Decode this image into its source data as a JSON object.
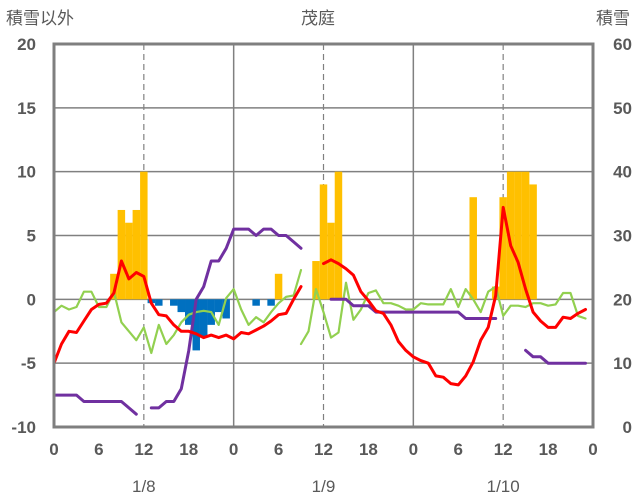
{
  "chart_data": {
    "type": "bar+line",
    "title": "茂庭",
    "left_axis_label": "積雪以外",
    "right_axis_label": "積雪",
    "left_ylim": [
      -10,
      20
    ],
    "left_ticks": [
      "-10",
      "-5",
      "0",
      "5",
      "10",
      "15",
      "20"
    ],
    "right_ylim": [
      0,
      60
    ],
    "right_ticks": [
      "0",
      "10",
      "20",
      "30",
      "40",
      "50",
      "60"
    ],
    "x_range_hours": [
      0,
      72
    ],
    "x_ticks": [
      "0",
      "6",
      "12",
      "18",
      "0",
      "6",
      "12",
      "18",
      "0",
      "6",
      "12",
      "18",
      "0"
    ],
    "x_tick_hours": [
      0,
      6,
      12,
      18,
      24,
      30,
      36,
      42,
      48,
      54,
      60,
      66,
      72
    ],
    "date_labels": [
      {
        "text": "1/8",
        "hour": 12
      },
      {
        "text": "1/9",
        "hour": 36
      },
      {
        "text": "1/10",
        "hour": 60
      }
    ],
    "grid": {
      "solid_hours": [
        24,
        48
      ],
      "dashed_hours": [
        12,
        36,
        60
      ],
      "horizontal_levels": [
        -5,
        0,
        5,
        10,
        15
      ]
    },
    "colors": {
      "precip": "#FFC000",
      "sunshine": "#0070C0",
      "temperature": "#FF0000",
      "wind": "#92D050",
      "snow_depth": "#7030A0",
      "axis": "#7F7F7F",
      "grid": "#808080",
      "text": "#595959"
    },
    "series": [
      {
        "key": "precip",
        "kind": "bar_positive",
        "hours": [
          8,
          9,
          10,
          11,
          12,
          30,
          35,
          36,
          37,
          38,
          56,
          59,
          60,
          61,
          62,
          63,
          64
        ],
        "values": [
          2,
          7,
          6,
          7,
          10,
          2,
          3,
          9,
          6,
          10,
          8,
          1,
          8,
          10,
          10,
          10,
          9
        ]
      },
      {
        "key": "sunshine",
        "kind": "bar_negative",
        "hours": [
          13,
          14,
          16,
          17,
          18,
          19,
          20,
          21,
          22,
          23,
          27,
          29
        ],
        "values": [
          0.3,
          0.5,
          0.5,
          1.0,
          2.0,
          4.0,
          3.0,
          2.0,
          1.0,
          1.5,
          0.5,
          0.5
        ]
      },
      {
        "key": "temperature",
        "kind": "line",
        "segments": [
          {
            "x": [
              0,
              1,
              2,
              3,
              4,
              5,
              6,
              7,
              8,
              9,
              10,
              11,
              12,
              13,
              14,
              15,
              16,
              17,
              18,
              19,
              20,
              21,
              22,
              23,
              24,
              25,
              26,
              27,
              28,
              29,
              30,
              31,
              32,
              33
            ],
            "y": [
              -5,
              -3.5,
              -2.5,
              -2.6,
              -1.7,
              -0.8,
              -0.4,
              -0.3,
              0.5,
              3,
              1.6,
              2.1,
              1.8,
              -0.3,
              -1.2,
              -1.3,
              -2.0,
              -2.5,
              -2.5,
              -2.7,
              -3.0,
              -2.8,
              -3.0,
              -2.8,
              -3.1,
              -2.6,
              -2.7,
              -2.4,
              -2.1,
              -1.7,
              -1.2,
              -1.1,
              0.0,
              1.0
            ]
          },
          {
            "x": [
              36,
              37,
              38,
              39,
              40,
              41,
              42,
              43,
              44,
              45,
              46,
              47,
              48,
              49,
              50,
              51,
              52,
              53,
              54,
              55,
              56,
              57,
              58,
              59,
              60,
              61,
              62,
              63,
              64,
              65,
              66,
              67,
              68,
              69,
              70,
              71
            ],
            "y": [
              2.8,
              3.1,
              2.8,
              2.4,
              1.9,
              0.6,
              -0.1,
              -0.9,
              -1.1,
              -2.0,
              -3.3,
              -4.0,
              -4.5,
              -4.8,
              -5.0,
              -6.0,
              -6.1,
              -6.6,
              -6.7,
              -6.0,
              -4.9,
              -3.2,
              -2.2,
              0.3,
              7.2,
              4.2,
              2.9,
              0.8,
              -1.0,
              -1.7,
              -2.2,
              -2.2,
              -1.4,
              -1.5,
              -1.1,
              -0.8
            ]
          }
        ]
      },
      {
        "key": "wind",
        "kind": "line",
        "segments": [
          {
            "x": [
              0,
              1,
              2,
              3,
              4,
              5,
              6,
              7,
              8,
              9,
              10,
              11,
              12,
              13,
              14,
              15,
              16,
              17,
              18,
              19,
              20,
              21,
              22,
              23,
              24,
              25,
              26,
              27,
              28,
              29,
              30,
              31,
              32,
              33
            ],
            "y": [
              -1.0,
              -0.5,
              -0.8,
              -0.6,
              0.6,
              0.6,
              -0.6,
              -0.6,
              0.6,
              -1.8,
              -2.5,
              -3.2,
              -2.2,
              -4.2,
              -2.0,
              -3.5,
              -2.8,
              -1.8,
              -1.2,
              -1.0,
              -0.9,
              -1.0,
              -2.0,
              0.1,
              0.8,
              -0.8,
              -2.0,
              -1.4,
              -1.8,
              -1.0,
              -0.3,
              0.2,
              0.3,
              2.3
            ]
          },
          {
            "x": [
              33,
              34,
              35,
              36,
              37,
              38,
              39,
              40,
              41,
              42,
              43,
              44,
              45,
              46,
              47,
              48,
              49,
              50,
              51,
              52,
              53,
              54,
              55,
              56,
              57,
              58,
              59,
              60,
              61,
              62,
              63,
              64,
              65,
              66,
              67,
              68,
              69,
              70,
              71
            ],
            "y": [
              -3.5,
              -2.5,
              0.8,
              -1.0,
              -3.0,
              -2.6,
              1.3,
              -1.6,
              -0.8,
              0.5,
              0.7,
              -0.3,
              -0.3,
              -0.5,
              -0.8,
              -0.8,
              -0.3,
              -0.4,
              -0.4,
              -0.4,
              0.8,
              -0.6,
              0.8,
              0.0,
              -1.0,
              0.6,
              1.0,
              -1.3,
              -0.5,
              -0.5,
              -0.6,
              -0.3,
              -0.3,
              -0.5,
              -0.4,
              0.5,
              0.5,
              -1.3,
              -1.5
            ]
          }
        ]
      },
      {
        "key": "snow_depth",
        "kind": "line_right_axis",
        "segments": [
          {
            "x": [
              0,
              1,
              2,
              3,
              4,
              5,
              6,
              7,
              8,
              9,
              10,
              11
            ],
            "y": [
              5,
              5,
              5,
              5,
              4,
              4,
              4,
              4,
              4,
              4,
              3,
              2
            ]
          },
          {
            "x": [
              13,
              14,
              15,
              16,
              17,
              18,
              19,
              20,
              21,
              22,
              23,
              24,
              25,
              26,
              27,
              28,
              29,
              30,
              31,
              32,
              33
            ],
            "y": [
              3,
              3,
              4,
              4,
              6,
              12,
              20,
              22,
              26,
              26,
              28,
              31,
              31,
              31,
              30,
              31,
              31,
              30,
              30,
              29,
              28
            ]
          },
          {
            "x": [
              37,
              38,
              39,
              40,
              41,
              42,
              43,
              44,
              45,
              46,
              47,
              48,
              49,
              50,
              51,
              52,
              53,
              54,
              55,
              56,
              57,
              58,
              59
            ],
            "y": [
              20,
              20,
              20,
              19,
              19,
              19,
              18,
              18,
              18,
              18,
              18,
              18,
              18,
              18,
              18,
              18,
              18,
              18,
              17,
              17,
              17,
              17,
              17
            ]
          },
          {
            "x": [
              63,
              64,
              65,
              66,
              67,
              68,
              69,
              70,
              71
            ],
            "y": [
              12,
              11,
              11,
              10,
              10,
              10,
              10,
              10,
              10
            ]
          }
        ]
      }
    ]
  }
}
